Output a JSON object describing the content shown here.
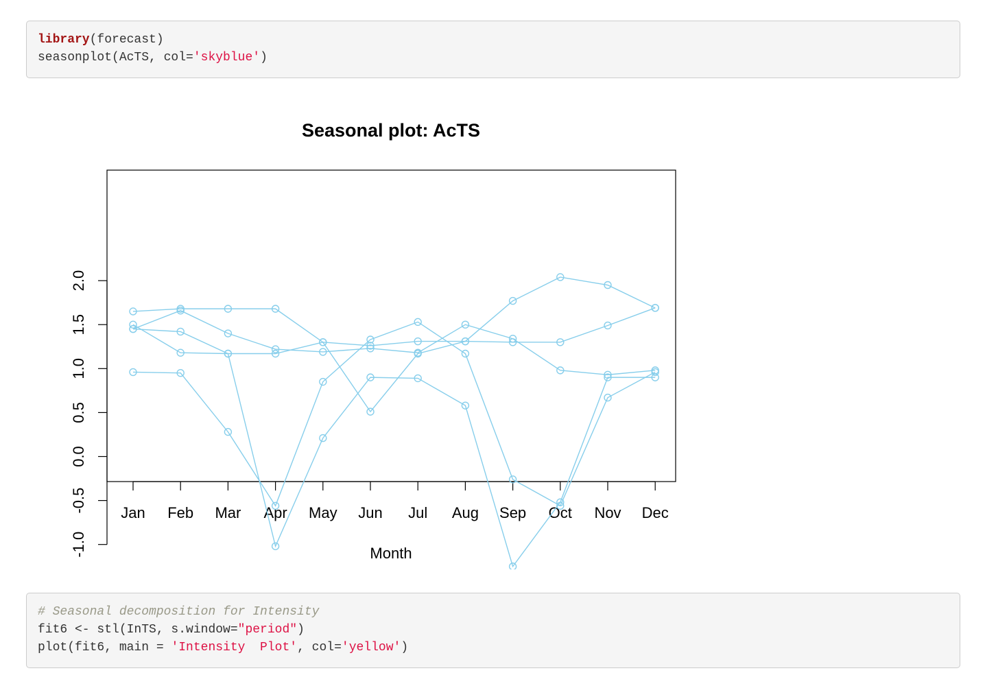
{
  "code_cell_1": {
    "lines": [
      [
        {
          "t": "library",
          "c": "kw"
        },
        {
          "t": "(forecast)",
          "c": ""
        }
      ],
      [
        {
          "t": "seasonplot(AcTS, col=",
          "c": ""
        },
        {
          "t": "'skyblue'",
          "c": "str"
        },
        {
          "t": ")",
          "c": ""
        }
      ]
    ]
  },
  "code_cell_2": {
    "lines": [
      [
        {
          "t": "# Seasonal decomposition for Intensity",
          "c": "cmt"
        }
      ],
      [
        {
          "t": "fit6 <- stl(InTS, s.window=",
          "c": ""
        },
        {
          "t": "\"period\"",
          "c": "str"
        },
        {
          "t": ")",
          "c": ""
        }
      ],
      [
        {
          "t": "plot(fit6, main = ",
          "c": ""
        },
        {
          "t": "'Intensity  Plot'",
          "c": "str"
        },
        {
          "t": ", col=",
          "c": ""
        },
        {
          "t": "'yellow'",
          "c": "str"
        },
        {
          "t": ")",
          "c": ""
        }
      ]
    ]
  },
  "chart_data": {
    "type": "line",
    "title": "Seasonal plot: AcTS",
    "xlabel": "Month",
    "ylabel": "",
    "categories": [
      "Jan",
      "Feb",
      "Mar",
      "Apr",
      "May",
      "Jun",
      "Jul",
      "Aug",
      "Sep",
      "Oct",
      "Nov",
      "Dec"
    ],
    "yticks": [
      "-1.0",
      "-0.5",
      "0.0",
      "0.5",
      "1.0",
      "1.5",
      "2.0"
    ],
    "ylim": [
      -1.36,
      2.18
    ],
    "color": "#87ceeb",
    "grid": false,
    "series": [
      {
        "values": [
          1.65,
          1.68,
          1.68,
          1.68,
          1.3,
          0.51,
          1.17,
          1.31,
          1.77,
          2.04,
          1.95,
          1.69
        ]
      },
      {
        "values": [
          1.5,
          1.18,
          1.17,
          1.17,
          1.3,
          1.26,
          1.31,
          1.31,
          1.3,
          1.3,
          1.49,
          1.69
        ]
      },
      {
        "values": [
          1.45,
          1.42,
          1.17,
          -1.02,
          0.21,
          0.9,
          0.89,
          0.58,
          -1.25,
          -0.52,
          0.9,
          0.9
        ]
      },
      {
        "values": [
          1.45,
          1.66,
          1.4,
          1.22,
          1.19,
          1.23,
          1.18,
          1.5,
          1.34,
          0.98,
          0.93,
          0.98
        ]
      },
      {
        "values": [
          0.96,
          0.95,
          0.28,
          -0.56,
          0.85,
          1.33,
          1.53,
          1.17,
          -0.26,
          -0.56,
          0.67,
          0.96
        ]
      }
    ]
  }
}
